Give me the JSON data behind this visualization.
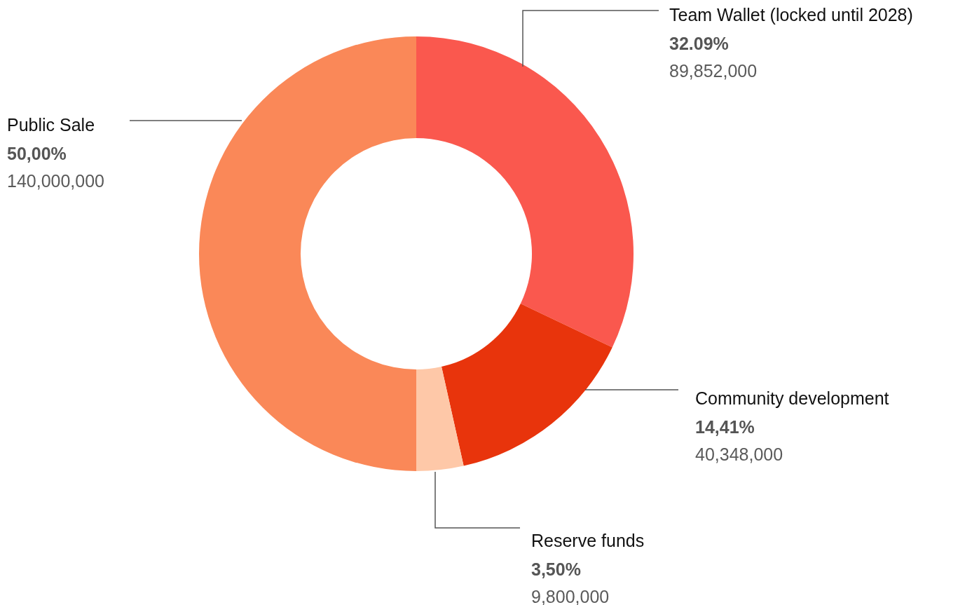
{
  "chart_data": {
    "type": "donut",
    "categories": [
      "Team Wallet (locked until 2028)",
      "Community development",
      "Reserve funds",
      "Public Sale"
    ],
    "values": [
      32.09,
      14.41,
      3.5,
      50
    ],
    "colors": [
      "#fa584e",
      "#e8340c",
      "#fec8a8",
      "#fa8858"
    ],
    "value_labels": [
      "32.09%",
      "14,41%",
      "3,50%",
      "50,00%"
    ],
    "annotations": [
      "89,852,000",
      "40,348,000",
      "9,800,000",
      "140,000,000"
    ]
  }
}
